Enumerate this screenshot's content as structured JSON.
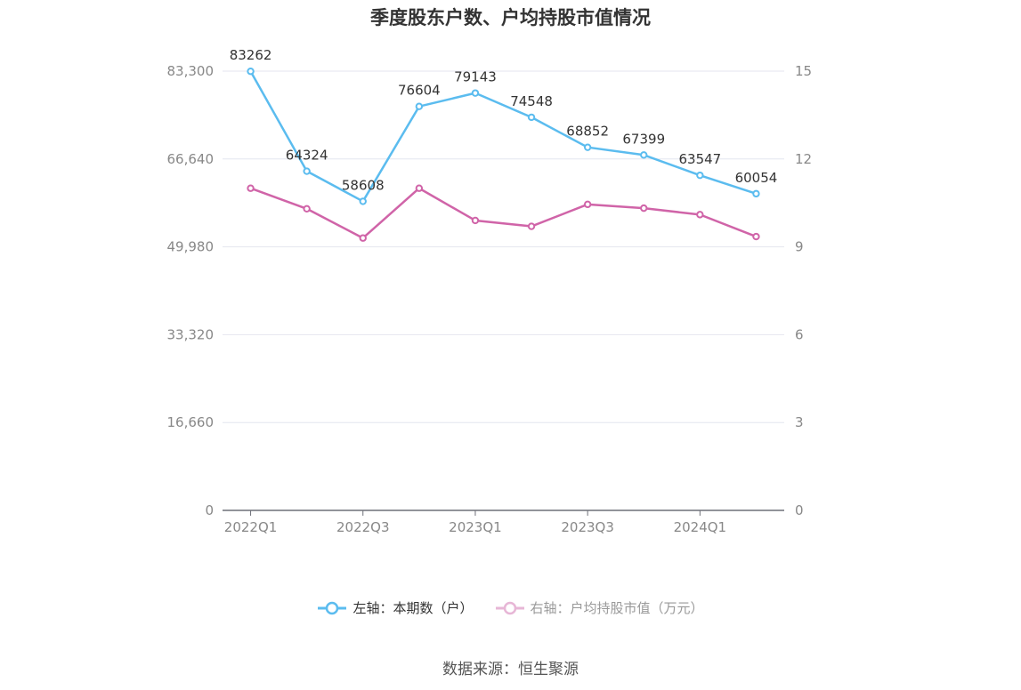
{
  "chart_data": {
    "type": "line",
    "title": "季度股东户数、户均持股市值情况",
    "categories": [
      "2022Q1",
      "2022Q2",
      "2022Q3",
      "2022Q4",
      "2023Q1",
      "2023Q2",
      "2023Q3",
      "2023Q4",
      "2024Q1",
      "2024Q2"
    ],
    "x_tick_labels": [
      "2022Q1",
      "2022Q3",
      "2023Q1",
      "2023Q3",
      "2024Q1"
    ],
    "y_left": {
      "ticks": [
        "0",
        "16,660",
        "33,320",
        "49,980",
        "66,640",
        "83,300"
      ],
      "ylim": [
        0,
        83300
      ]
    },
    "y_right": {
      "ticks": [
        "0",
        "3",
        "6",
        "9",
        "12",
        "15"
      ],
      "ylim": [
        0,
        15
      ]
    },
    "series": [
      {
        "name": "左轴：本期数（户）",
        "axis": "left",
        "color": "#5bbcef",
        "values": [
          83262,
          64324,
          58608,
          76604,
          79143,
          74548,
          68852,
          67399,
          63547,
          60054
        ],
        "labels": [
          "83262",
          "64324",
          "58608",
          "76604",
          "79143",
          "74548",
          "68852",
          "67399",
          "63547",
          "60054"
        ]
      },
      {
        "name": "右轴：户均持股市值（万元）",
        "axis": "right",
        "color": "#d064a8",
        "values": [
          11.0,
          10.3,
          9.3,
          11.0,
          9.9,
          9.7,
          10.45,
          10.32,
          10.1,
          9.35
        ]
      }
    ],
    "grid": true,
    "legend_position": "bottom"
  },
  "source": "数据来源：恒生聚源"
}
